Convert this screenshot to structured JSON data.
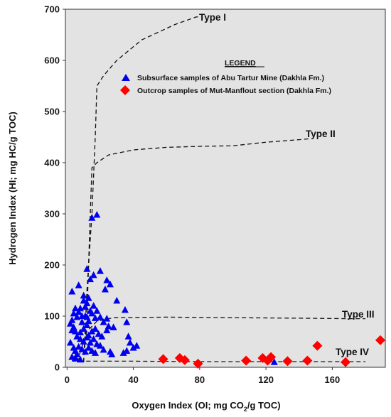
{
  "chart_data": {
    "type": "scatter",
    "title": "",
    "xlabel": "Oxygen Index (OI; mg CO",
    "xlabel_sub": "2",
    "xlabel_tail": "/g TOC)",
    "ylabel": "Hydrogen Index (HI; mg HC/g TOC)",
    "xlim": [
      -1,
      192
    ],
    "ylim": [
      0,
      700
    ],
    "x_ticks": [
      0,
      40,
      80,
      120,
      160
    ],
    "y_ticks": [
      0,
      100,
      200,
      300,
      400,
      500,
      600,
      700
    ],
    "plot_background": "#e3e3e3",
    "legend": {
      "title": "LEGEND",
      "placement": "top-center",
      "entries": [
        {
          "label": "Subsurface samples of Abu Tartur Mine (Dakhla Fm.)",
          "marker": "triangle",
          "color": "#0000ee"
        },
        {
          "label": "Outcrop samples of Mut-Manflout section (Dakhla Fm.)",
          "marker": "diamond",
          "color": "#ff0000"
        }
      ]
    },
    "kerogen_curves": [
      {
        "label": "Type I",
        "points": [
          [
            10,
            10
          ],
          [
            12,
            150
          ],
          [
            15,
            300
          ],
          [
            17,
            450
          ],
          [
            18,
            550
          ],
          [
            22,
            570
          ],
          [
            30,
            600
          ],
          [
            45,
            640
          ],
          [
            55,
            655
          ],
          [
            65,
            670
          ],
          [
            78,
            685
          ],
          [
            80,
            685
          ]
        ]
      },
      {
        "label": "Type II",
        "points": [
          [
            10,
            10
          ],
          [
            12,
            100
          ],
          [
            13,
            200
          ],
          [
            14,
            300
          ],
          [
            15,
            390
          ],
          [
            18,
            400
          ],
          [
            25,
            415
          ],
          [
            40,
            425
          ],
          [
            60,
            430
          ],
          [
            80,
            432
          ],
          [
            100,
            433
          ],
          [
            120,
            440
          ],
          [
            140,
            445
          ],
          [
            147,
            447
          ]
        ]
      },
      {
        "label": "Type III",
        "points": [
          [
            6,
            10
          ],
          [
            9,
            40
          ],
          [
            12,
            70
          ],
          [
            18,
            90
          ],
          [
            28,
            97
          ],
          [
            60,
            98
          ],
          [
            100,
            97
          ],
          [
            140,
            96
          ],
          [
            170,
            95
          ],
          [
            180,
            95
          ]
        ]
      },
      {
        "label": "Type IV",
        "points": [
          [
            3,
            12
          ],
          [
            40,
            12
          ],
          [
            80,
            11
          ],
          [
            120,
            11
          ],
          [
            160,
            11
          ],
          [
            180,
            11
          ]
        ]
      }
    ],
    "series": [
      {
        "name": "Subsurface samples of Abu Tartur Mine (Dakhla Fm.)",
        "marker": "triangle",
        "color": "#0000ee",
        "points": [
          [
            3,
            148
          ],
          [
            7,
            160
          ],
          [
            12,
            192
          ],
          [
            14,
            172
          ],
          [
            15,
            292
          ],
          [
            18,
            298
          ],
          [
            16,
            180
          ],
          [
            20,
            188
          ],
          [
            24,
            170
          ],
          [
            26,
            162
          ],
          [
            23,
            152
          ],
          [
            30,
            130
          ],
          [
            35,
            112
          ],
          [
            13,
            135
          ],
          [
            10,
            130
          ],
          [
            12,
            125
          ],
          [
            11,
            118
          ],
          [
            8,
            115
          ],
          [
            5,
            115
          ],
          [
            4,
            105
          ],
          [
            6,
            98
          ],
          [
            9,
            100
          ],
          [
            15,
            105
          ],
          [
            17,
            96
          ],
          [
            20,
            98
          ],
          [
            22,
            88
          ],
          [
            24,
            95
          ],
          [
            25,
            80
          ],
          [
            28,
            78
          ],
          [
            3,
            92
          ],
          [
            2,
            85
          ],
          [
            4,
            78
          ],
          [
            3,
            72
          ],
          [
            5,
            70
          ],
          [
            8,
            68
          ],
          [
            10,
            75
          ],
          [
            12,
            82
          ],
          [
            13,
            90
          ],
          [
            15,
            70
          ],
          [
            17,
            75
          ],
          [
            19,
            65
          ],
          [
            21,
            60
          ],
          [
            24,
            72
          ],
          [
            6,
            60
          ],
          [
            8,
            55
          ],
          [
            10,
            50
          ],
          [
            12,
            58
          ],
          [
            14,
            48
          ],
          [
            16,
            55
          ],
          [
            18,
            45
          ],
          [
            20,
            42
          ],
          [
            7,
            40
          ],
          [
            9,
            35
          ],
          [
            11,
            30
          ],
          [
            13,
            38
          ],
          [
            15,
            32
          ],
          [
            17,
            28
          ],
          [
            22,
            34
          ],
          [
            26,
            30
          ],
          [
            27,
            25
          ],
          [
            2,
            48
          ],
          [
            4,
            38
          ],
          [
            5,
            32
          ],
          [
            6,
            25
          ],
          [
            3,
            20
          ],
          [
            5,
            18
          ],
          [
            8,
            15
          ],
          [
            36,
            88
          ],
          [
            37,
            60
          ],
          [
            38,
            48
          ],
          [
            40,
            38
          ],
          [
            42,
            42
          ],
          [
            34,
            28
          ],
          [
            36,
            32
          ],
          [
            125,
            10
          ],
          [
            11,
            100
          ],
          [
            14,
            110
          ],
          [
            9,
            88
          ],
          [
            13,
            62
          ],
          [
            18,
            110
          ],
          [
            16,
            120
          ],
          [
            7,
            108
          ],
          [
            10,
            140
          ],
          [
            12,
            98
          ]
        ]
      },
      {
        "name": "Outcrop samples of Mut-Manflout section (Dakhla Fm.)",
        "marker": "diamond",
        "color": "#ff0000",
        "points": [
          [
            58,
            16
          ],
          [
            68,
            18
          ],
          [
            71,
            14
          ],
          [
            79,
            7
          ],
          [
            108,
            13
          ],
          [
            118,
            18
          ],
          [
            121,
            13
          ],
          [
            123,
            20
          ],
          [
            133,
            12
          ],
          [
            145,
            13
          ],
          [
            151,
            42
          ],
          [
            168,
            10
          ],
          [
            189,
            53
          ]
        ]
      }
    ]
  }
}
